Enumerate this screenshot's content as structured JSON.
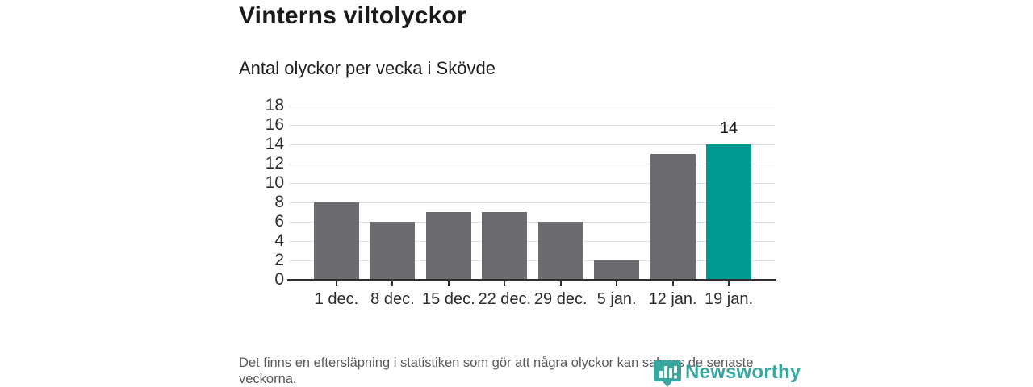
{
  "header": {
    "title": "Vinterns viltolyckor",
    "subtitle": "Antal olyckor per vecka i Skövde"
  },
  "chart_data": {
    "type": "bar",
    "title": "Vinterns viltolyckor",
    "subtitle": "Antal olyckor per vecka i Skövde",
    "xlabel": "",
    "ylabel": "",
    "categories": [
      "1 dec.",
      "8 dec.",
      "15 dec.",
      "22 dec.",
      "29 dec.",
      "5 jan.",
      "12 jan.",
      "19 jan."
    ],
    "values": [
      8,
      6,
      7,
      7,
      6,
      2,
      13,
      14
    ],
    "highlight_index": 7,
    "data_label": {
      "index": 7,
      "text": "14"
    },
    "y_ticks": [
      0,
      2,
      4,
      6,
      8,
      10,
      12,
      14,
      16,
      18
    ],
    "ylim": [
      0,
      18
    ],
    "grid": true,
    "legend": "none",
    "colors": {
      "bar": "#6c6c70",
      "highlight": "#009a92",
      "grid": "#e0e0e0",
      "axis": "#2e2e2e",
      "tick_label": "#2d2d2d"
    }
  },
  "footer": {
    "note": "Det finns en eftersläpning i statistiken som gör att några olyckor kan saknas de senaste veckorna."
  },
  "branding": {
    "logo_text": "Newsworthy",
    "logo_color": "#38a7a0",
    "logo_icon": "newsworthy-pin-barchart-icon"
  }
}
